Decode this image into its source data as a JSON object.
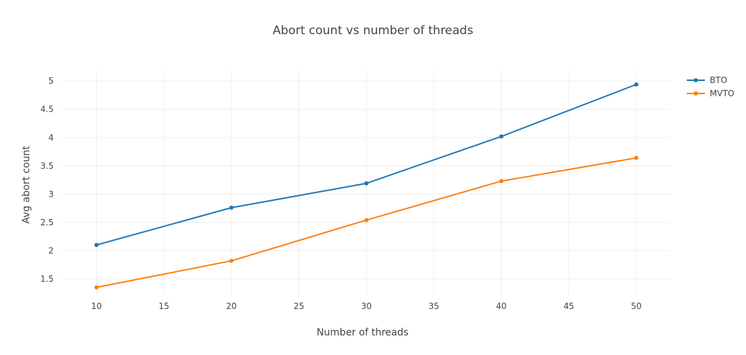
{
  "chart_data": {
    "type": "line",
    "title": "Abort count vs number of threads",
    "xlabel": "Number of threads",
    "ylabel": "Avg abort count",
    "x": [
      10,
      20,
      30,
      40,
      50
    ],
    "xlim": [
      7.5,
      52.5
    ],
    "ylim": [
      1.19,
      5.2
    ],
    "xticks": [
      "10",
      "15",
      "20",
      "25",
      "30",
      "35",
      "40",
      "45",
      "50"
    ],
    "yticks": [
      "1.5",
      "2",
      "2.5",
      "3",
      "3.5",
      "4",
      "4.5",
      "5"
    ],
    "grid": true,
    "legend_position": "top-right",
    "series": [
      {
        "name": "BTO",
        "color": "#1f77b4",
        "values": [
          2.1,
          2.76,
          3.19,
          4.02,
          4.94
        ]
      },
      {
        "name": "MVTO",
        "color": "#ff7f0e",
        "values": [
          1.35,
          1.82,
          2.54,
          3.23,
          3.64
        ]
      }
    ]
  }
}
